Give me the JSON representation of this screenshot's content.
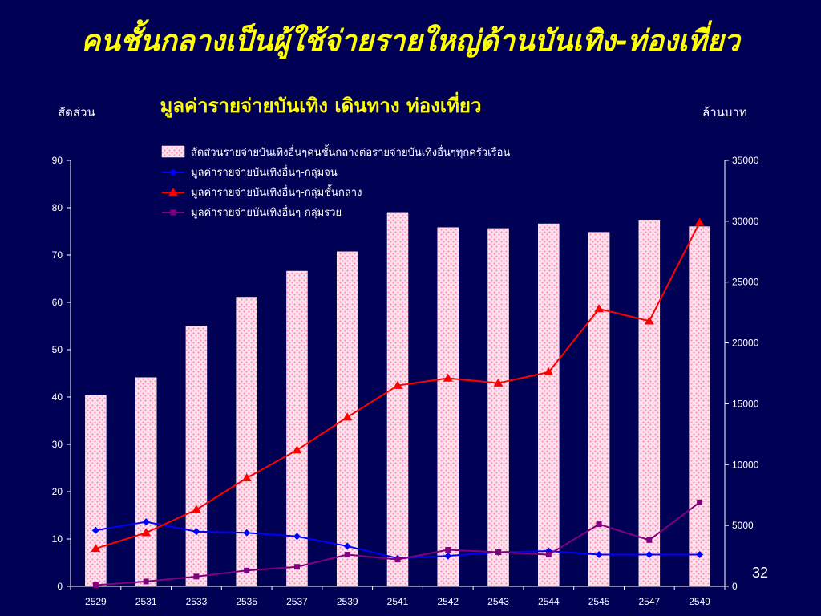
{
  "slide": {
    "title": "คนชั้นกลางเป็นผู้ใช้จ่ายรายใหญ่ด้านบันเทิง-ท่องเที่ยว",
    "page_number": "32"
  },
  "colors": {
    "background": "#000055",
    "title": "#ffff00",
    "text": "#ffffff",
    "bar_fill": "#ffe0ec",
    "bar_dots": "#ff7fb0",
    "series_poor": "#0000ff",
    "series_middle": "#ff0000",
    "series_rich": "#800080",
    "axis": "#ffffff"
  },
  "chart_data": {
    "type": "bar",
    "title": "มูลค่ารายจ่ายบันเทิง เดินทาง ท่องเที่ยว",
    "ylabel_left": "สัดส่วน",
    "ylabel_right": "ล้านบาท",
    "categories": [
      "2529",
      "2531",
      "2533",
      "2535",
      "2537",
      "2539",
      "2541",
      "2542",
      "2543",
      "2544",
      "2545",
      "2547",
      "2549"
    ],
    "ylim_left": [
      0,
      90
    ],
    "yticks_left": [
      "0",
      "10",
      "20",
      "30",
      "40",
      "50",
      "60",
      "70",
      "80",
      "90"
    ],
    "ylim_right": [
      0,
      35000
    ],
    "yticks_right": [
      "0",
      "5000",
      "10000",
      "15000",
      "20000",
      "25000",
      "30000",
      "35000"
    ],
    "grid": false,
    "legend_position": "top",
    "bar_series": {
      "name": "สัดส่วนรายจ่ายบันเทิงอื่นๆคนชั้นกลางต่อรายจ่ายบันเทิงอื่นๆทุกครัวเรือน",
      "axis": "left",
      "values": [
        40.3,
        44.1,
        55.0,
        61.1,
        66.6,
        70.7,
        79.0,
        75.8,
        75.6,
        76.6,
        74.8,
        77.4,
        76.0
      ]
    },
    "line_series": [
      {
        "name": "มูลค่ารายจ่ายบันเทิงอื่นๆ-กลุ่มจน",
        "axis": "right",
        "marker": "diamond",
        "color": "#0000ff",
        "values": [
          4600,
          5300,
          4500,
          4400,
          4100,
          3300,
          2300,
          2500,
          2800,
          2900,
          2600,
          2600,
          2600
        ]
      },
      {
        "name": "มูลค่ารายจ่ายบันเทิงอื่นๆ-กลุ่มชั้นกลาง",
        "axis": "right",
        "marker": "triangle",
        "color": "#ff0000",
        "values": [
          3100,
          4400,
          6300,
          8900,
          11200,
          13900,
          16500,
          17100,
          16700,
          17600,
          22800,
          21800,
          29900
        ]
      },
      {
        "name": "มูลค่ารายจ่ายบันเทิงอื่นๆ-กลุ่มรวย",
        "axis": "right",
        "marker": "square",
        "color": "#800080",
        "values": [
          100,
          400,
          800,
          1300,
          1600,
          2600,
          2200,
          3000,
          2800,
          2600,
          5100,
          3800,
          6900
        ]
      }
    ]
  }
}
